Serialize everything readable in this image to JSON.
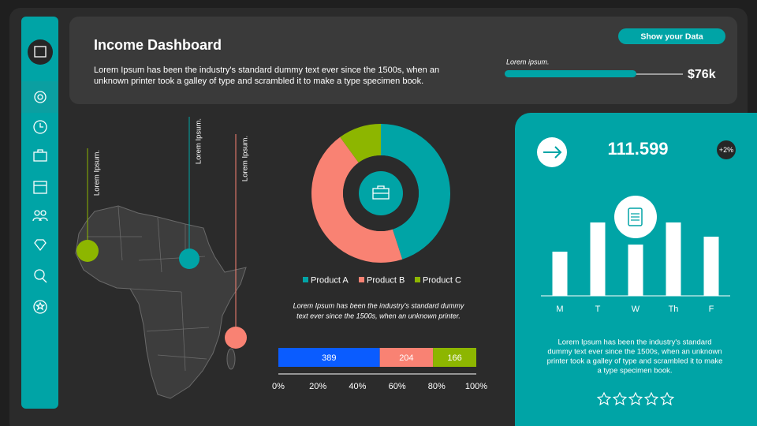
{
  "header": {
    "title": "Income Dashboard",
    "text": [
      "Lorem Ipsum has been the industry's standard dummy text ever since the 1500s, when an",
      "unknown printer took a galley of type and scrambled it to make a type specimen book."
    ],
    "button": "Show your Data",
    "progress_label": "Lorem ipsum.",
    "progress_value": "$76k"
  },
  "map": {
    "pins": [
      {
        "label": "Lorem Ipsum.",
        "color": "#8db600"
      },
      {
        "label": "Lorem Ipsum.",
        "color": "#00a4a6"
      },
      {
        "label": "Lorem Ipsum.",
        "color": "#f98273"
      }
    ]
  },
  "donut_caption": [
    "Lorem Ipsum has been the industry's standard dummy",
    "text ever since the 1500s, when an unknown printer."
  ],
  "kpi": {
    "value": "111.599",
    "badge": "+2%"
  },
  "panel_text": [
    "Lorem Ipsum has been the industry's standard",
    "dummy text ever since the 1500s, when an unknown",
    "printer took a galley of type and scrambled it to make",
    "a type specimen book."
  ],
  "chart_data": [
    {
      "type": "donut",
      "categories": [
        "Product A",
        "Product B",
        "Product C"
      ],
      "values": [
        45,
        45,
        10
      ],
      "colors": [
        "#00a4a6",
        "#f98273",
        "#8db600"
      ]
    },
    {
      "type": "percent_bar",
      "values": [
        389,
        204,
        166
      ],
      "colors": [
        "#0a5cff",
        "#f98273",
        "#8db600"
      ],
      "xlim": [
        0,
        100
      ],
      "xticks": [
        {
          "value": 0,
          "label": "0%"
        },
        {
          "value": 20,
          "label": "20%"
        },
        {
          "value": 40,
          "label": "40%"
        },
        {
          "value": 60,
          "label": "60%"
        },
        {
          "value": 80,
          "label": "80%"
        },
        {
          "value": 100,
          "label": "100%"
        }
      ]
    },
    {
      "type": "bar",
      "categories": [
        "M",
        "T",
        "W",
        "Th",
        "F"
      ],
      "values": [
        56,
        93,
        65,
        93,
        75
      ],
      "color": "#ffffff",
      "ylim": [
        0,
        100
      ]
    }
  ]
}
